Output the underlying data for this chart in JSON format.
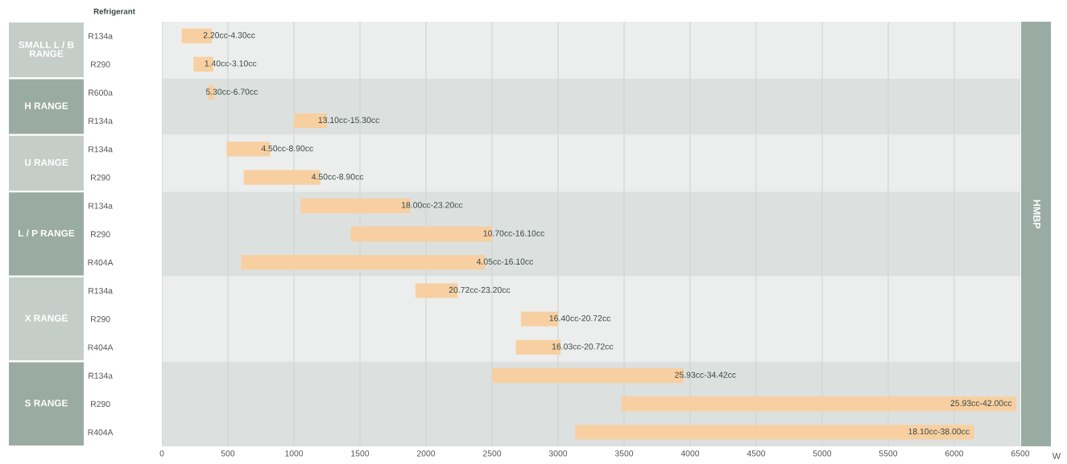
{
  "chart_data": [
    {
      "type": "bar",
      "orientation": "horizontal",
      "title": "SMALL L / B\nRANGE",
      "ylabel": "Refrigerant",
      "categories": [
        "R134a",
        "R290"
      ],
      "base": [
        150,
        240
      ],
      "values": [
        230,
        150
      ],
      "color": "#f8cfa0",
      "annotations": [
        "2.20cc-4.30cc",
        "1.40cc-3.10cc"
      ],
      "xlim": [
        0,
        6500
      ],
      "xticks": [
        0,
        500,
        1000,
        1500,
        2000,
        2500,
        3000,
        3500,
        4000,
        4500,
        5000,
        5500,
        6000,
        6500
      ],
      "grid": "x",
      "tick_labels": "y"
    },
    {
      "type": "bar",
      "orientation": "horizontal",
      "title": "H RANGE",
      "categories": [
        "R600a",
        "R134a"
      ],
      "base": [
        350,
        1000
      ],
      "values": [
        50,
        250
      ],
      "color": "#f8cfa0",
      "annotations": [
        "5.30cc-6.70cc",
        "13.10cc-15.30cc"
      ],
      "xlim": [
        0,
        6500
      ],
      "xticks": [
        0,
        500,
        1000,
        1500,
        2000,
        2500,
        3000,
        3500,
        4000,
        4500,
        5000,
        5500,
        6000,
        6500
      ],
      "grid": "x",
      "tick_labels": "y"
    },
    {
      "type": "bar",
      "orientation": "horizontal",
      "title": "U RANGE",
      "categories": [
        "R134a",
        "R290"
      ],
      "base": [
        490,
        620
      ],
      "values": [
        330,
        580
      ],
      "color": "#f8cfa0",
      "annotations": [
        "4.50cc-8.90cc",
        "4.50cc-8.90cc"
      ],
      "xlim": [
        0,
        6500
      ],
      "xticks": [
        0,
        500,
        1000,
        1500,
        2000,
        2500,
        3000,
        3500,
        4000,
        4500,
        5000,
        5500,
        6000,
        6500
      ],
      "grid": "x",
      "tick_labels": "y"
    },
    {
      "type": "bar",
      "orientation": "horizontal",
      "title": "L / P RANGE",
      "y2label": "HMBP",
      "categories": [
        "R134a",
        "R290",
        "R404A"
      ],
      "base": [
        1050,
        1430,
        600
      ],
      "values": [
        830,
        1070,
        1850
      ],
      "color": "#f8cfa0",
      "annotations": [
        "18.00cc-23.20cc",
        "10.70cc-16.10cc",
        "4.05cc-16.10cc"
      ],
      "xlim": [
        0,
        6500
      ],
      "xticks": [
        0,
        500,
        1000,
        1500,
        2000,
        2500,
        3000,
        3500,
        4000,
        4500,
        5000,
        5500,
        6000,
        6500
      ],
      "grid": "x",
      "tick_labels": "y"
    },
    {
      "type": "bar",
      "orientation": "horizontal",
      "title": "X RANGE",
      "categories": [
        "R134a",
        "R290",
        "R404A"
      ],
      "base": [
        1920,
        2720,
        2680
      ],
      "values": [
        320,
        280,
        340
      ],
      "color": "#f8cfa0",
      "annotations": [
        "20.72cc-23.20cc",
        "16.40cc-20.72cc",
        "16.03cc-20.72cc"
      ],
      "xlim": [
        0,
        6500
      ],
      "xticks": [
        0,
        500,
        1000,
        1500,
        2000,
        2500,
        3000,
        3500,
        4000,
        4500,
        5000,
        5500,
        6000,
        6500
      ],
      "grid": "x",
      "tick_labels": "y"
    },
    {
      "type": "bar",
      "orientation": "horizontal",
      "title": "S RANGE",
      "xlabel": "W",
      "categories": [
        "R134a",
        "R290",
        "R404A"
      ],
      "base": [
        2500,
        3480,
        3130
      ],
      "values": [
        1450,
        2990,
        3020
      ],
      "color": "#f8cfa0",
      "annotations": [
        "25.93cc-34.42cc",
        "25.93cc-42.00cc",
        "18.10cc-38.00cc"
      ],
      "xlim": [
        0,
        6500
      ],
      "xticks": [
        0,
        500,
        1000,
        1500,
        2000,
        2500,
        3000,
        3500,
        4000,
        4500,
        5000,
        5500,
        6000,
        6500
      ],
      "grid": "x"
    }
  ]
}
